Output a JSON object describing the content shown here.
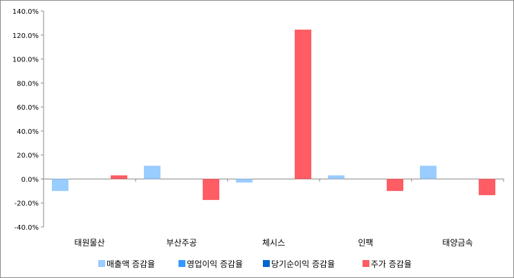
{
  "chart_data": {
    "type": "bar",
    "categories": [
      "태원물산",
      "부산주공",
      "체시스",
      "인팩",
      "태양금속"
    ],
    "series": [
      {
        "name": "매출액 증감율",
        "color": "#99ccff",
        "values": [
          -10.0,
          11.0,
          -3.0,
          3.0,
          11.0
        ]
      },
      {
        "name": "영업이익 증감율",
        "color": "#3399ff",
        "values": [
          0,
          0,
          0,
          0,
          0
        ]
      },
      {
        "name": "당기순이익 증감율",
        "color": "#0066cc",
        "values": [
          0,
          0,
          0,
          0,
          0
        ]
      },
      {
        "name": "주가 증감율",
        "color": "#ff5c64",
        "values": [
          3.0,
          -17.5,
          124.5,
          -10.0,
          -13.5
        ]
      }
    ],
    "ylim": [
      -40,
      140
    ],
    "yticks": [
      -40,
      -20,
      0,
      20,
      40,
      60,
      80,
      100,
      120,
      140
    ],
    "ytick_labels": [
      "-40.0%",
      "-20.0%",
      "0.0%",
      "20.0%",
      "40.0%",
      "60.0%",
      "80.0%",
      "100.0%",
      "120.0%",
      "140.0%"
    ],
    "grid": false,
    "legend_position": "bottom",
    "title": "",
    "xlabel": "",
    "ylabel": ""
  }
}
